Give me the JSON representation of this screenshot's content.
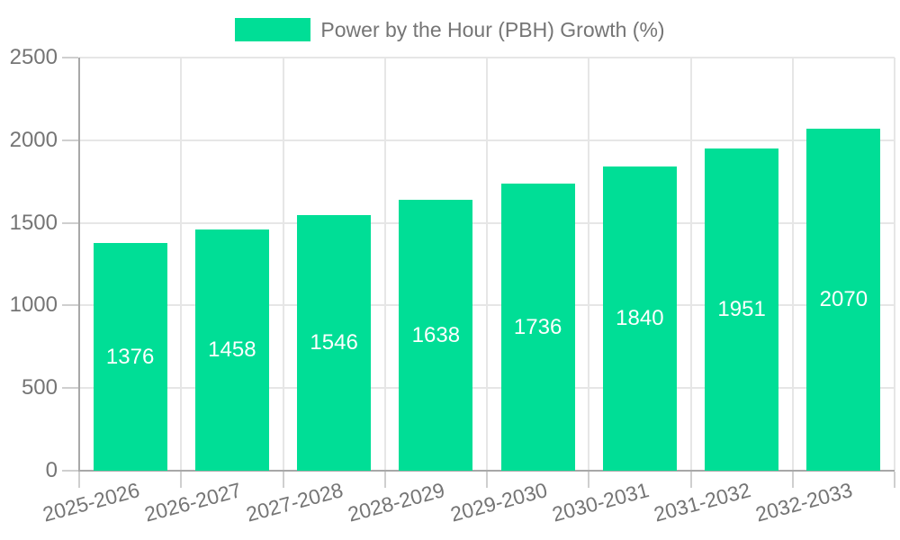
{
  "legend": {
    "label": "Power by the Hour (PBH) Growth (%)"
  },
  "chart_data": {
    "type": "bar",
    "title": "Power by the Hour (PBH) Growth (%)",
    "categories": [
      "2025-2026",
      "2026-2027",
      "2027-2028",
      "2028-2029",
      "2029-2030",
      "2030-2031",
      "2031-2032",
      "2032-2033"
    ],
    "series": [
      {
        "name": "Power by the Hour (PBH) Growth (%)",
        "values": [
          1376,
          1458,
          1546,
          1638,
          1736,
          1840,
          1951,
          2070
        ]
      }
    ],
    "bar_value_labels": [
      "1376",
      "1458",
      "1546",
      "1638",
      "1736",
      "1840",
      "1951",
      "2070"
    ],
    "xlabel": "",
    "ylabel": "",
    "ylim": [
      0,
      2500
    ],
    "yticks": [
      0,
      500,
      1000,
      1500,
      2000,
      2500
    ],
    "grid": true,
    "legend_position": "top"
  },
  "colors": {
    "bar": "#00de96",
    "bar_label": "#ffffff",
    "text": "#757575",
    "grid": "#e6e6e6",
    "axis": "#a8a8a8",
    "tick": "#cfcfcf",
    "background": "#ffffff"
  }
}
